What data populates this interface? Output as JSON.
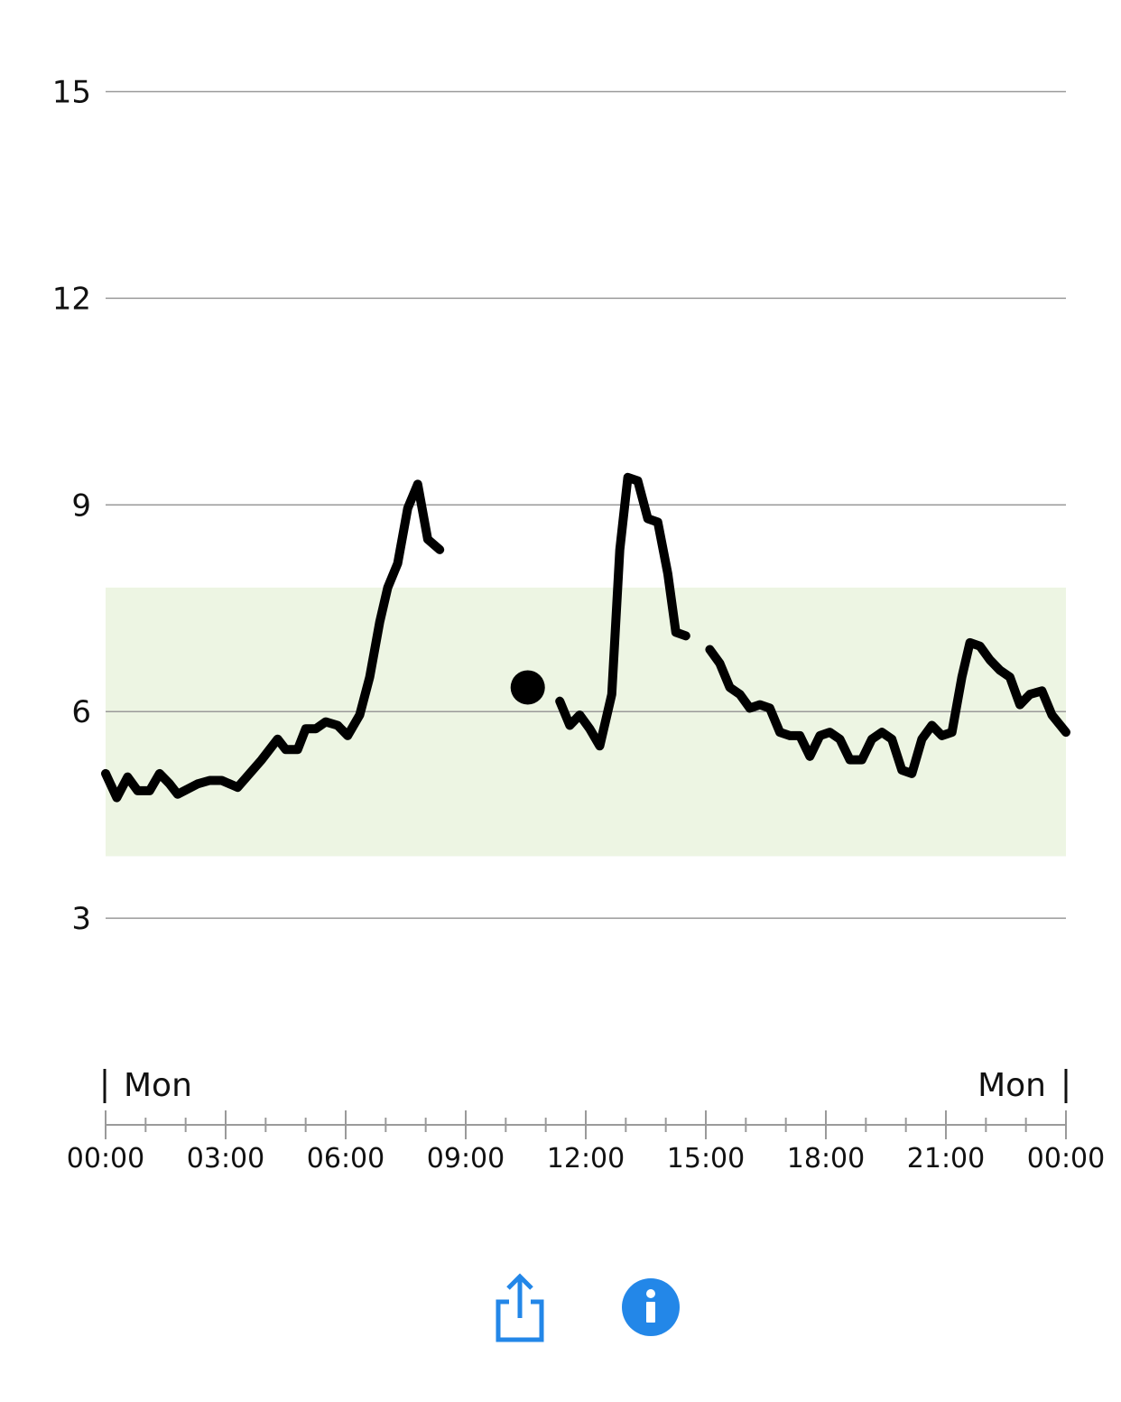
{
  "chart_data": {
    "type": "line",
    "ylim": [
      0,
      16.33
    ],
    "xlim": [
      0,
      24
    ],
    "yticks": [
      {
        "value": 3,
        "label": "3"
      },
      {
        "value": 6,
        "label": "6"
      },
      {
        "value": 9,
        "label": "9"
      },
      {
        "value": 12,
        "label": "12"
      },
      {
        "value": 15,
        "label": "15"
      }
    ],
    "xticks": [
      {
        "value": 0,
        "label": "00:00"
      },
      {
        "value": 3,
        "label": "03:00"
      },
      {
        "value": 6,
        "label": "06:00"
      },
      {
        "value": 9,
        "label": "09:00"
      },
      {
        "value": 12,
        "label": "12:00"
      },
      {
        "value": 15,
        "label": "15:00"
      },
      {
        "value": 18,
        "label": "18:00"
      },
      {
        "value": 21,
        "label": "21:00"
      },
      {
        "value": 24,
        "label": "00:00"
      }
    ],
    "minor_tick_step": 1,
    "day_labels": {
      "start": "Mon",
      "end": "Mon"
    },
    "target_range": {
      "low": 3.9,
      "high": 7.8,
      "color": "#edf5e3"
    },
    "grid": true,
    "line_color": "#000000",
    "grid_color": "#9a9a9a",
    "segments": [
      [
        [
          0,
          5.1
        ],
        [
          0.28,
          4.75
        ],
        [
          0.55,
          5.05
        ],
        [
          0.8,
          4.85
        ],
        [
          1.1,
          4.85
        ],
        [
          1.35,
          5.1
        ],
        [
          1.6,
          4.95
        ],
        [
          1.8,
          4.8
        ],
        [
          2.3,
          4.95
        ],
        [
          2.6,
          5.0
        ],
        [
          2.9,
          5.0
        ],
        [
          3.3,
          4.9
        ],
        [
          3.9,
          5.3
        ],
        [
          4.3,
          5.6
        ],
        [
          4.5,
          5.45
        ],
        [
          4.8,
          5.45
        ],
        [
          5.0,
          5.75
        ],
        [
          5.25,
          5.75
        ],
        [
          5.5,
          5.85
        ],
        [
          5.8,
          5.8
        ],
        [
          6.05,
          5.65
        ],
        [
          6.35,
          5.95
        ],
        [
          6.6,
          6.5
        ],
        [
          6.85,
          7.3
        ],
        [
          7.05,
          7.8
        ],
        [
          7.3,
          8.15
        ],
        [
          7.55,
          8.95
        ],
        [
          7.8,
          9.3
        ],
        [
          8.05,
          8.5
        ],
        [
          8.35,
          8.35
        ]
      ],
      [
        [
          10.55,
          6.35
        ]
      ],
      [
        [
          11.35,
          6.15
        ],
        [
          11.6,
          5.8
        ],
        [
          11.85,
          5.95
        ],
        [
          12.1,
          5.75
        ],
        [
          12.35,
          5.5
        ],
        [
          12.65,
          6.25
        ],
        [
          12.85,
          8.35
        ],
        [
          13.05,
          9.4
        ],
        [
          13.3,
          9.35
        ],
        [
          13.55,
          8.8
        ],
        [
          13.8,
          8.75
        ],
        [
          14.05,
          8.0
        ],
        [
          14.25,
          7.15
        ],
        [
          14.5,
          7.1
        ]
      ],
      [
        [
          15.1,
          6.9
        ],
        [
          15.35,
          6.7
        ],
        [
          15.6,
          6.35
        ],
        [
          15.85,
          6.25
        ],
        [
          16.1,
          6.05
        ],
        [
          16.35,
          6.1
        ],
        [
          16.6,
          6.05
        ],
        [
          16.85,
          5.7
        ],
        [
          17.1,
          5.65
        ],
        [
          17.35,
          5.65
        ],
        [
          17.6,
          5.35
        ],
        [
          17.85,
          5.65
        ],
        [
          18.1,
          5.7
        ],
        [
          18.35,
          5.6
        ],
        [
          18.6,
          5.3
        ],
        [
          18.9,
          5.3
        ],
        [
          19.15,
          5.6
        ],
        [
          19.4,
          5.7
        ],
        [
          19.65,
          5.6
        ],
        [
          19.9,
          5.15
        ],
        [
          20.15,
          5.1
        ],
        [
          20.4,
          5.6
        ],
        [
          20.65,
          5.8
        ],
        [
          20.9,
          5.65
        ],
        [
          21.15,
          5.7
        ],
        [
          21.4,
          6.5
        ],
        [
          21.6,
          7.0
        ],
        [
          21.85,
          6.95
        ],
        [
          22.1,
          6.75
        ],
        [
          22.35,
          6.6
        ],
        [
          22.6,
          6.5
        ],
        [
          22.85,
          6.1
        ],
        [
          23.1,
          6.25
        ],
        [
          23.4,
          6.3
        ],
        [
          23.65,
          5.95
        ],
        [
          24,
          5.7
        ]
      ]
    ]
  },
  "toolbar": {
    "share_icon": "share-icon",
    "info_icon": "info-icon",
    "accent_color": "#2387e8"
  }
}
